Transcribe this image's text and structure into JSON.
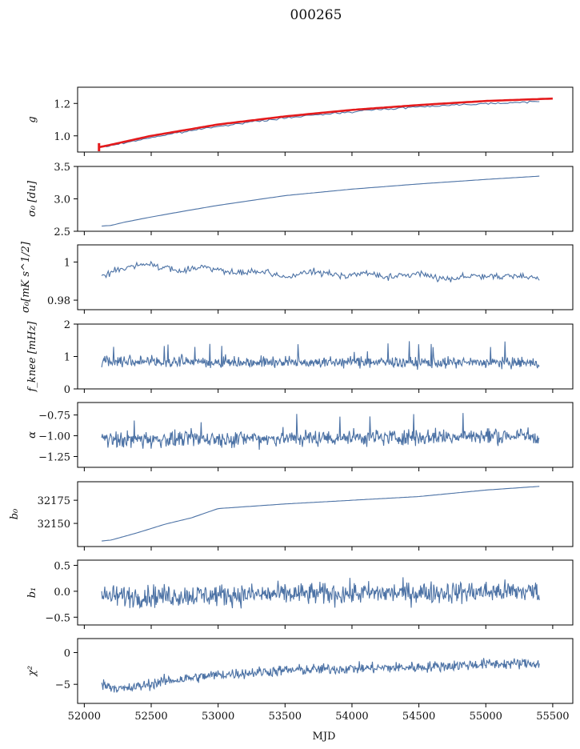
{
  "figure": {
    "title": "000265",
    "xlabel": "MJD",
    "xlim": [
      51950,
      55650
    ],
    "xticks": [
      52000,
      52500,
      53000,
      53500,
      54000,
      54500,
      55000,
      55500
    ]
  },
  "chart_data": [
    {
      "type": "line",
      "ylabel": "g",
      "ylim": [
        0.9,
        1.3
      ],
      "yticks": [
        1.0,
        1.2
      ],
      "series": [
        {
          "color": "#4c72a5",
          "x": [
            52130,
            52200,
            52500,
            53000,
            53500,
            54000,
            54500,
            55000,
            55400
          ],
          "y": [
            0.93,
            0.94,
            0.99,
            1.06,
            1.11,
            1.15,
            1.18,
            1.2,
            1.21
          ]
        },
        {
          "color": "#e41a1c",
          "x": [
            52110,
            52200,
            52500,
            53000,
            53500,
            54000,
            54500,
            55000,
            55500
          ],
          "y": [
            0.93,
            0.945,
            1.0,
            1.07,
            1.12,
            1.16,
            1.19,
            1.215,
            1.23
          ]
        }
      ]
    },
    {
      "type": "line",
      "ylabel": "σ₀ [du]",
      "ylim": [
        2.5,
        3.5
      ],
      "yticks": [
        2.5,
        3.0,
        3.5
      ],
      "series": [
        {
          "color": "#4c72a5",
          "x": [
            52130,
            52200,
            52300,
            52500,
            52800,
            53000,
            53500,
            54000,
            54500,
            55000,
            55400
          ],
          "y": [
            2.58,
            2.59,
            2.64,
            2.72,
            2.83,
            2.9,
            3.05,
            3.15,
            3.23,
            3.3,
            3.35
          ]
        }
      ]
    },
    {
      "type": "line",
      "ylabel": "σ₀[mK s^1/2]",
      "ylim": [
        0.975,
        1.009
      ],
      "yticks": [
        0.98,
        1.0
      ],
      "series": [
        {
          "color": "#4c72a5",
          "x": [
            52130,
            52300,
            52500,
            52700,
            52900,
            53100,
            53300,
            53500,
            53700,
            53900,
            54100,
            54300,
            54500,
            54700,
            54900,
            55100,
            55300,
            55400
          ],
          "y": [
            0.993,
            0.997,
            0.999,
            0.995,
            0.998,
            0.994,
            0.995,
            0.992,
            0.995,
            0.993,
            0.994,
            0.992,
            0.994,
            0.991,
            0.993,
            0.992,
            0.993,
            0.991
          ]
        }
      ]
    },
    {
      "type": "line",
      "ylabel": "f_knee [mHz]",
      "ylim": [
        0,
        2
      ],
      "yticks": [
        0,
        1,
        2
      ],
      "series": [
        {
          "color": "#4c72a5",
          "x": [
            52130,
            55400
          ],
          "y": [
            0.85,
            0.8
          ]
        }
      ]
    },
    {
      "type": "line",
      "ylabel": "α",
      "ylim": [
        -1.38,
        -0.6
      ],
      "yticks": [
        -0.75,
        -1.0,
        -1.25
      ],
      "series": [
        {
          "color": "#4c72a5",
          "x": [
            52130,
            55400
          ],
          "y": [
            -1.05,
            -1.0
          ]
        }
      ]
    },
    {
      "type": "line",
      "ylabel": "b₀",
      "ylim": [
        32125,
        32195
      ],
      "yticks": [
        32150,
        32175
      ],
      "series": [
        {
          "color": "#4c72a5",
          "x": [
            52130,
            52200,
            52400,
            52600,
            52800,
            53000,
            53200,
            53500,
            54000,
            54500,
            55000,
            55400
          ],
          "y": [
            32131,
            32132,
            32140,
            32149,
            32156,
            32166,
            32168,
            32171,
            32175,
            32179,
            32186,
            32190
          ]
        }
      ]
    },
    {
      "type": "line",
      "ylabel": "b₁",
      "ylim": [
        -0.65,
        0.6
      ],
      "yticks": [
        0.5,
        0.0,
        -0.5
      ],
      "series": [
        {
          "color": "#4c72a5",
          "x": [
            52130,
            55400
          ],
          "y": [
            -0.1,
            0.0
          ]
        }
      ]
    },
    {
      "type": "line",
      "ylabel": "χ²",
      "ylim": [
        -8,
        2.2
      ],
      "yticks": [
        0,
        -5
      ],
      "series": [
        {
          "color": "#4c72a5",
          "x": [
            52130,
            52300,
            52600,
            53000,
            53500,
            54000,
            54500,
            55000,
            55400
          ],
          "y": [
            -5.0,
            -5.8,
            -4.5,
            -3.5,
            -2.8,
            -2.5,
            -2.3,
            -1.8,
            -1.7
          ]
        }
      ]
    }
  ]
}
